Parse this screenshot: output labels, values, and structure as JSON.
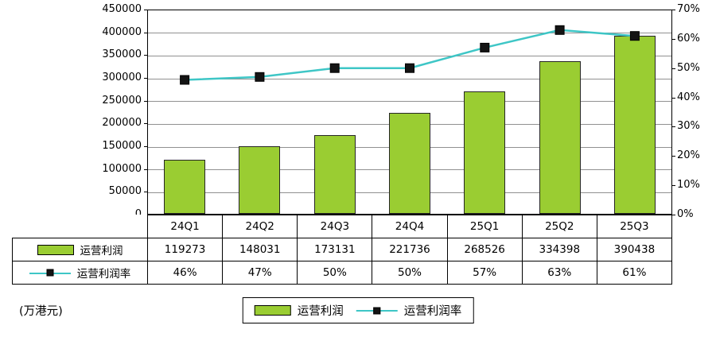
{
  "chart_data": {
    "type": "combo",
    "categories": [
      "24Q1",
      "24Q2",
      "24Q3",
      "24Q4",
      "25Q1",
      "25Q2",
      "25Q3"
    ],
    "series": [
      {
        "name": "运营利润",
        "type": "bar",
        "values": [
          119273,
          148031,
          173131,
          221736,
          268526,
          334398,
          390438
        ],
        "color": "#9ACD32",
        "axis": "left"
      },
      {
        "name": "运营利润率",
        "type": "line",
        "values": [
          46,
          47,
          50,
          50,
          57,
          63,
          61
        ],
        "color": "#3EC6C6",
        "marker": "black-square",
        "axis": "right"
      }
    ],
    "left_axis": {
      "min": 0,
      "max": 450000,
      "step": 50000,
      "ticks": [
        "450000",
        "400000",
        "350000",
        "300000",
        "250000",
        "200000",
        "150000",
        "100000",
        "50000",
        "0"
      ]
    },
    "right_axis": {
      "min": 0,
      "max": 70,
      "step": 10,
      "ticks": [
        "70%",
        "60%",
        "50%",
        "40%",
        "30%",
        "20%",
        "10%",
        "0%"
      ]
    },
    "grid": "horizontal",
    "legend_position": "bottom-center",
    "title": "",
    "unit_label": "(万港元)"
  },
  "table": {
    "rows": [
      {
        "label": "运营利润",
        "key": "bar",
        "values": [
          "119273",
          "148031",
          "173131",
          "221736",
          "268526",
          "334398",
          "390438"
        ]
      },
      {
        "label": "运营利润率",
        "key": "line",
        "values": [
          "46%",
          "47%",
          "50%",
          "50%",
          "57%",
          "63%",
          "61%"
        ]
      }
    ]
  },
  "legend": {
    "bar_label": "运营利润",
    "line_label": "运营利润率"
  },
  "colors": {
    "bar": "#9ACD32",
    "line": "#3EC6C6",
    "marker": "#141414",
    "grid": "#909090"
  }
}
